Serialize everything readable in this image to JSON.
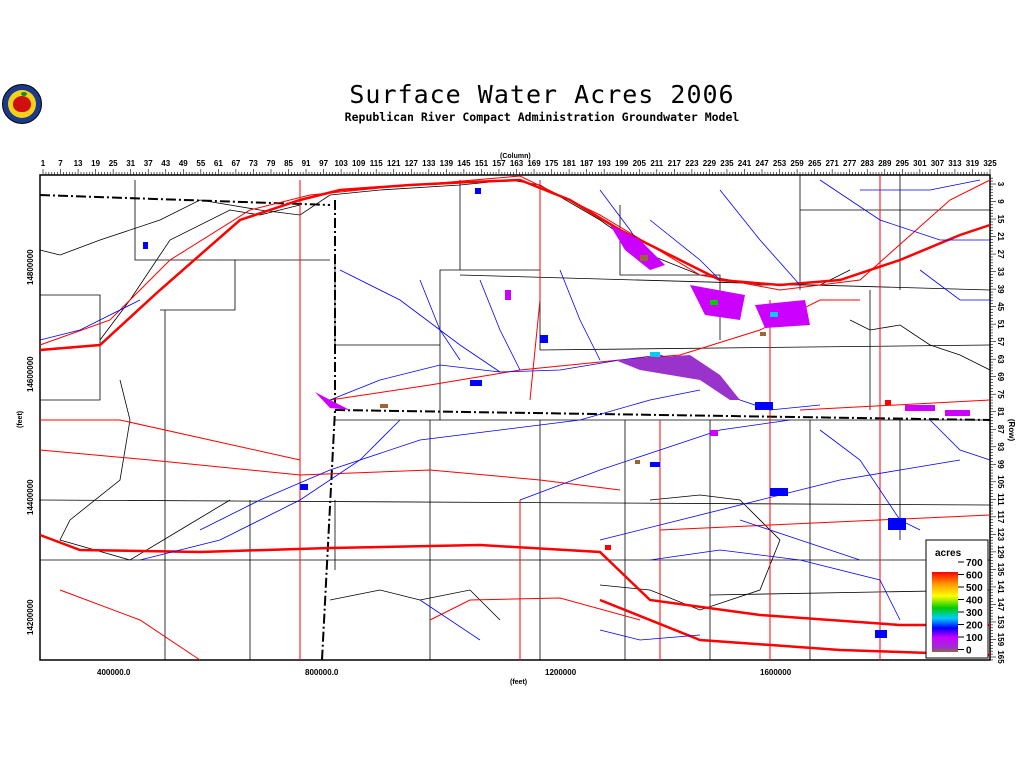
{
  "header": {
    "title": "Surface Water Acres 2006",
    "subtitle": "Republican River Compact Administration Groundwater Model",
    "logo_icon": "apple-seal-logo"
  },
  "axes": {
    "column_label": "(Column)",
    "row_label": "(Row)",
    "columns": [
      "1",
      "7",
      "13",
      "19",
      "25",
      "31",
      "37",
      "43",
      "49",
      "55",
      "61",
      "67",
      "73",
      "79",
      "85",
      "91",
      "97",
      "103",
      "109",
      "115",
      "121",
      "127",
      "133",
      "139",
      "145",
      "151",
      "157",
      "163",
      "169",
      "175",
      "181",
      "187",
      "193",
      "199",
      "205",
      "211",
      "217",
      "223",
      "229",
      "235",
      "241",
      "247",
      "253",
      "259",
      "265",
      "271",
      "277",
      "283",
      "289",
      "295",
      "301",
      "307",
      "313",
      "319",
      "325"
    ],
    "rows": [
      "3",
      "9",
      "15",
      "21",
      "27",
      "33",
      "39",
      "45",
      "51",
      "57",
      "63",
      "69",
      "75",
      "81",
      "87",
      "93",
      "99",
      "105",
      "111",
      "117",
      "123",
      "129",
      "135",
      "141",
      "147",
      "153",
      "159",
      "165"
    ],
    "y_label": "(feet)",
    "y_ticks": [
      "14800000",
      "14600000",
      "14400000",
      "14200000"
    ],
    "x_label": "(feet)",
    "x_ticks": [
      "400000.0",
      "800000.0",
      "1200000",
      "1600000"
    ]
  },
  "legend": {
    "title": "acres",
    "labels": [
      "700",
      "600",
      "500",
      "400",
      "300",
      "200",
      "100",
      "0"
    ],
    "colors": [
      "#ff0000",
      "#ff9900",
      "#ffff00",
      "#00cc00",
      "#00ccff",
      "#0000ff",
      "#cc00ff",
      "#996633"
    ]
  },
  "colors": {
    "rivers": "#0000ff",
    "roads": "#ff0000",
    "boundaries": "#000000"
  }
}
